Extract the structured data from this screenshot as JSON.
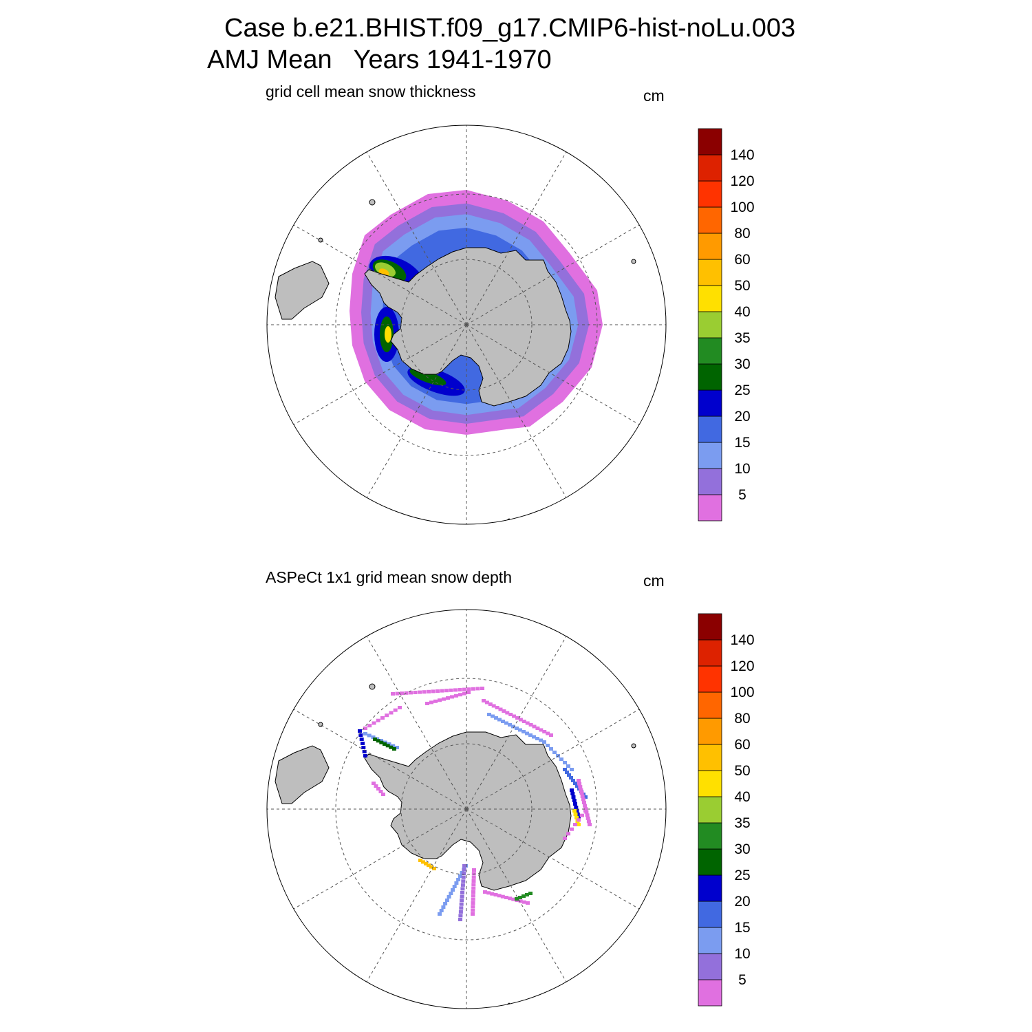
{
  "figure": {
    "title_line1": "Case b.e21.BHIST.f09_g17.CMIP6-hist-noLu.003",
    "title_line2": "AMJ Mean   Years 1941-1970"
  },
  "panels": [
    {
      "title": "grid cell mean snow thickness",
      "units": "cm"
    },
    {
      "title": "ASPeCt 1x1 grid mean snow depth",
      "units": "cm"
    }
  ],
  "colorbar": {
    "labels": [
      "5",
      "10",
      "15",
      "20",
      "25",
      "30",
      "35",
      "40",
      "50",
      "60",
      "80",
      "100",
      "120",
      "140"
    ],
    "colors": [
      "#e070e0",
      "#9370db",
      "#7b9cf0",
      "#4169e1",
      "#0000cd",
      "#006400",
      "#228b22",
      "#9acd32",
      "#ffe000",
      "#ffc000",
      "#ff9a00",
      "#ff6600",
      "#ff3300",
      "#dd2200",
      "#8b0000"
    ]
  },
  "map_colors": {
    "land": "#bebebe",
    "coast": "#000000",
    "grid": "#555555"
  }
}
